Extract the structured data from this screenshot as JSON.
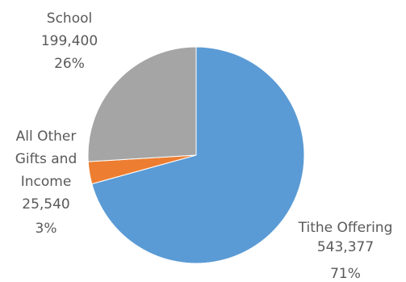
{
  "chart_data": {
    "type": "pie",
    "title": "",
    "slices": [
      {
        "label": "Tithe Offering",
        "value": 543377,
        "value_text": "543,377",
        "percent_text": "71%",
        "color": "#5b9bd5"
      },
      {
        "label": "All Other Gifts and Income",
        "label_lines": [
          "All Other",
          "Gifts and",
          "Income"
        ],
        "value": 25540,
        "value_text": "25,540",
        "percent_text": "3%",
        "color": "#ed7d31"
      },
      {
        "label": "School",
        "value": 199400,
        "value_text": "199,400",
        "percent_text": "26%",
        "color": "#a5a5a5"
      }
    ],
    "legend": "none"
  }
}
